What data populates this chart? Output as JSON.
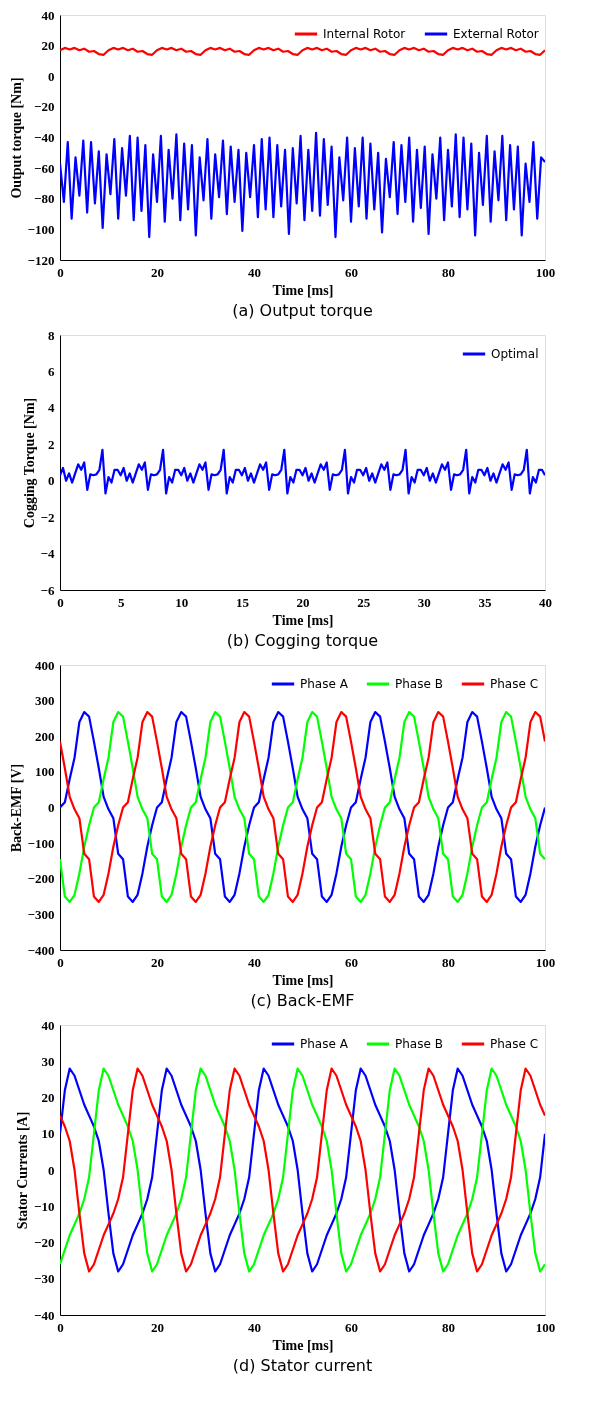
{
  "chart_data": [
    {
      "type": "line",
      "title": "(a) Output torque",
      "xlabel": "Time [ms]",
      "ylabel": "Output torque [Nm]",
      "xlim": [
        0,
        100
      ],
      "xticks": [
        0,
        20,
        40,
        60,
        80,
        100
      ],
      "ylim": [
        -120,
        40
      ],
      "yticks": [
        -120,
        -100,
        -80,
        -60,
        -40,
        -20,
        0,
        20,
        40
      ],
      "legend": "top right",
      "x": [
        0,
        1,
        2,
        3,
        4,
        5,
        6,
        7,
        8,
        9,
        10,
        11,
        12,
        13,
        14,
        15,
        16,
        17,
        18,
        19,
        20,
        21,
        22,
        23,
        24,
        25,
        26,
        27,
        28,
        29,
        30,
        31,
        32,
        33,
        34,
        35,
        36,
        37,
        38,
        39,
        40,
        41,
        42,
        43,
        44,
        45,
        46,
        47,
        48,
        49,
        50,
        51,
        52,
        53,
        54,
        55,
        56,
        57,
        58,
        59,
        60,
        61,
        62,
        63,
        64,
        65,
        66,
        67,
        68,
        69,
        70,
        71,
        72,
        73,
        74,
        75,
        76,
        77,
        78,
        79,
        80,
        81,
        82,
        83,
        84,
        85,
        86,
        87,
        88,
        89,
        90,
        91,
        92,
        93,
        94,
        95,
        96,
        97,
        98,
        99,
        100
      ],
      "series": [
        {
          "name": "Internal Rotor",
          "color": "#ff0000",
          "values": [
            17,
            18.5,
            17.5,
            18.5,
            17,
            18,
            16,
            16.5,
            14.5,
            14,
            17,
            18.5,
            17.5,
            18.5,
            17,
            18,
            16,
            16.5,
            14.5,
            14,
            17,
            18.5,
            17.5,
            18.5,
            17,
            18,
            16,
            16.5,
            14.5,
            14,
            17,
            18.5,
            17.5,
            18.5,
            17,
            18,
            16,
            16.5,
            14.5,
            14,
            17,
            18.5,
            17.5,
            18.5,
            17,
            18,
            16,
            16.5,
            14.5,
            14,
            17,
            18.5,
            17.5,
            18.5,
            17,
            18,
            16,
            16.5,
            14.5,
            14,
            17,
            18.5,
            17.5,
            18.5,
            17,
            18,
            16,
            16.5,
            14.5,
            14,
            17,
            18.5,
            17.5,
            18.5,
            17,
            18,
            16,
            16.5,
            14.5,
            14,
            17,
            18.5,
            17.5,
            18.5,
            17,
            18,
            16,
            16.5,
            14.5,
            14,
            17,
            18.5,
            17.5,
            18.5,
            17,
            18,
            16,
            16.5,
            14.5,
            14,
            17
          ]
        },
        {
          "name": "External Rotor",
          "color": "#0000ff",
          "x": [
            0,
            0.8,
            1.6,
            2.4,
            3.2,
            4,
            4.8,
            5.6,
            6.4,
            7.2,
            8,
            8.8,
            9.6,
            10.4,
            11.2,
            12,
            12.8,
            13.6,
            14.4,
            15.2,
            16,
            16.8,
            17.6,
            18.4,
            19.2,
            20,
            20.8,
            21.6,
            22.4,
            23.2,
            24,
            24.8,
            25.6,
            26.4,
            27.2,
            28,
            28.8,
            29.6,
            30.4,
            31.2,
            32,
            32.8,
            33.6,
            34.4,
            35.2,
            36,
            36.8,
            37.6,
            38.4,
            39.2,
            40,
            40.8,
            41.6,
            42.4,
            43.2,
            44,
            44.8,
            45.6,
            46.4,
            47.2,
            48,
            48.8,
            49.6,
            50.4,
            51.2,
            52,
            52.8,
            53.6,
            54.4,
            55.2,
            56,
            56.8,
            57.6,
            58.4,
            59.2,
            60,
            60.8,
            61.6,
            62.4,
            63.2,
            64,
            64.8,
            65.6,
            66.4,
            67.2,
            68,
            68.8,
            69.6,
            70.4,
            71.2,
            72,
            72.8,
            73.6,
            74.4,
            75.2,
            76,
            76.8,
            77.6,
            78.4,
            79.2,
            80,
            80.8,
            81.6,
            82.4,
            83.2,
            84,
            84.8,
            85.6,
            86.4,
            87.2,
            88,
            88.8,
            89.6,
            90.4,
            91.2,
            92,
            92.8,
            93.6,
            94.4,
            95.2,
            96,
            96.8,
            97.6,
            98.4,
            99.2,
            100
          ],
          "values": [
            -57,
            -82,
            -43,
            -93,
            -53,
            -78,
            -42,
            -89,
            -43,
            -83,
            -49,
            -99,
            -51,
            -77,
            -41,
            -93,
            -47,
            -78,
            -39,
            -94,
            -40,
            -88,
            -45,
            -105,
            -51,
            -82,
            -39,
            -95,
            -48,
            -80,
            -38,
            -94,
            -44,
            -87,
            -45,
            -104,
            -53,
            -81,
            -41,
            -93,
            -51,
            -79,
            -42,
            -90,
            -46,
            -82,
            -48,
            -101,
            -50,
            -79,
            -45,
            -92,
            -41,
            -87,
            -40,
            -92,
            -45,
            -85,
            -48,
            -103,
            -47,
            -83,
            -39,
            -94,
            -48,
            -88,
            -37,
            -91,
            -41,
            -84,
            -46,
            -105,
            -53,
            -81,
            -40,
            -95,
            -47,
            -85,
            -40,
            -93,
            -44,
            -87,
            -50,
            -102,
            -54,
            -79,
            -43,
            -90,
            -45,
            -82,
            -40,
            -95,
            -48,
            -86,
            -46,
            -103,
            -51,
            -80,
            -40,
            -94,
            -48,
            -85,
            -38,
            -92,
            -40,
            -87,
            -44,
            -104,
            -50,
            -84,
            -39,
            -95,
            -49,
            -81,
            -39,
            -94,
            -45,
            -87,
            -46,
            -104,
            -57,
            -82,
            -43,
            -93,
            -53,
            -56
          ]
        }
      ]
    },
    {
      "type": "line",
      "title": "(b) Cogging torque",
      "xlabel": "Time [ms]",
      "ylabel": "Cogging Torque [Nm]",
      "xlim": [
        0,
        40
      ],
      "xticks": [
        0,
        5,
        10,
        15,
        20,
        25,
        30,
        35,
        40
      ],
      "ylim": [
        -6,
        8
      ],
      "yticks": [
        -6,
        -4,
        -2,
        0,
        2,
        4,
        6,
        8
      ],
      "legend": "top right",
      "x": [
        0,
        0.25,
        0.5,
        0.75,
        1,
        1.25,
        1.5,
        1.75,
        2,
        2.25,
        2.5,
        2.75,
        3,
        3.25,
        3.5,
        3.75,
        4,
        4.25,
        4.5,
        4.75,
        5,
        5.25,
        5.5,
        5.75,
        6,
        6.25,
        6.5,
        6.75,
        7,
        7.25,
        7.5,
        7.75,
        8,
        8.25,
        8.5,
        8.75,
        9,
        9.25,
        9.5,
        9.75,
        10,
        10.25,
        10.5,
        10.75,
        11,
        11.25,
        11.5,
        11.75,
        12,
        12.25,
        12.5,
        12.75,
        13,
        13.25,
        13.5,
        13.75,
        14,
        14.25,
        14.5,
        14.75,
        15,
        15.25,
        15.5,
        15.75,
        16,
        16.25,
        16.5,
        16.75,
        17,
        17.25,
        17.5,
        17.75,
        18,
        18.25,
        18.5,
        18.75,
        19,
        19.25,
        19.5,
        19.75,
        20,
        20.25,
        20.5,
        20.75,
        21,
        21.25,
        21.5,
        21.75,
        22,
        22.25,
        22.5,
        22.75,
        23,
        23.25,
        23.5,
        23.75,
        24,
        24.25,
        24.5,
        24.75,
        25,
        25.25,
        25.5,
        25.75,
        26,
        26.25,
        26.5,
        26.75,
        27,
        27.25,
        27.5,
        27.75,
        28,
        28.25,
        28.5,
        28.75,
        29,
        29.25,
        29.5,
        29.75,
        30,
        30.25,
        30.5,
        30.75,
        31,
        31.25,
        31.5,
        31.75,
        32,
        32.25,
        32.5,
        32.75,
        33,
        33.25,
        33.5,
        33.75,
        34,
        34.25,
        34.5,
        34.75,
        35,
        35.25,
        35.5,
        35.75,
        36,
        36.25,
        36.5,
        36.75,
        37,
        37.25,
        37.5,
        37.75,
        38,
        38.25,
        38.5,
        38.75,
        39,
        39.25,
        39.5,
        39.75,
        40
      ],
      "series": [
        {
          "name": "Optimal",
          "color": "#0000ff",
          "values": [
            0.3,
            0.7,
            0,
            0.4,
            -0.1,
            0.4,
            0.9,
            0.6,
            1.0,
            -0.5,
            0.35,
            0.3,
            0.35,
            0.6,
            1.7,
            -0.7,
            0.2,
            -0.1,
            0.6,
            0.6,
            0.3,
            0.7,
            0,
            0.4,
            -0.1,
            0.4,
            0.9,
            0.6,
            1.0,
            -0.5,
            0.35,
            0.3,
            0.35,
            0.6,
            1.7,
            -0.7,
            0.2,
            -0.1,
            0.6,
            0.6,
            0.3,
            0.7,
            0,
            0.4,
            -0.1,
            0.4,
            0.9,
            0.6,
            1.0,
            -0.5,
            0.35,
            0.3,
            0.35,
            0.6,
            1.7,
            -0.7,
            0.2,
            -0.1,
            0.6,
            0.6,
            0.3,
            0.7,
            0,
            0.4,
            -0.1,
            0.4,
            0.9,
            0.6,
            1.0,
            -0.5,
            0.35,
            0.3,
            0.35,
            0.6,
            1.7,
            -0.7,
            0.2,
            -0.1,
            0.6,
            0.6,
            0.3,
            0.7,
            0,
            0.4,
            -0.1,
            0.4,
            0.9,
            0.6,
            1.0,
            -0.5,
            0.35,
            0.3,
            0.35,
            0.6,
            1.7,
            -0.7,
            0.2,
            -0.1,
            0.6,
            0.6,
            0.3,
            0.7,
            0,
            0.4,
            -0.1,
            0.4,
            0.9,
            0.6,
            1.0,
            -0.5,
            0.35,
            0.3,
            0.35,
            0.6,
            1.7,
            -0.7,
            0.2,
            -0.1,
            0.6,
            0.6,
            0.3,
            0.7,
            0,
            0.4,
            -0.1,
            0.4,
            0.9,
            0.6,
            1.0,
            -0.5,
            0.35,
            0.3,
            0.35,
            0.6,
            1.7,
            -0.7,
            0.2,
            -0.1,
            0.6,
            0.6,
            0.3,
            0.7,
            0,
            0.4,
            -0.1,
            0.4,
            0.9,
            0.6,
            1.0,
            -0.5,
            0.35,
            0.3,
            0.35,
            0.6,
            1.7,
            -0.7,
            0.2,
            -0.1,
            0.6,
            0.6,
            0.3
          ]
        }
      ]
    },
    {
      "type": "line",
      "title": "(c) Back-EMF",
      "xlabel": "Time [ms]",
      "ylabel": "Back-EMF [V]",
      "xlim": [
        0,
        100
      ],
      "xticks": [
        0,
        20,
        40,
        60,
        80,
        100
      ],
      "ylim": [
        -400,
        400
      ],
      "yticks": [
        -400,
        -300,
        -200,
        -100,
        0,
        100,
        200,
        300,
        400
      ],
      "legend": "top right",
      "x": [
        0,
        1,
        2,
        3,
        4,
        5,
        6,
        7,
        8,
        9,
        10,
        11,
        12,
        13,
        14,
        15,
        16,
        17,
        18,
        19,
        20,
        21,
        22,
        23,
        24,
        25,
        26,
        27,
        28,
        29,
        30,
        31,
        32,
        33,
        34,
        35,
        36,
        37,
        38,
        39,
        40,
        41,
        42,
        43,
        44,
        45,
        46,
        47,
        48,
        49,
        50,
        51,
        52,
        53,
        54,
        55,
        56,
        57,
        58,
        59,
        60,
        61,
        62,
        63,
        64,
        65,
        66,
        67,
        68,
        69,
        70,
        71,
        72,
        73,
        74,
        75,
        76,
        77,
        78,
        79,
        80,
        81,
        82,
        83,
        84,
        85,
        86,
        87,
        88,
        89,
        90,
        91,
        92,
        93,
        94,
        95,
        96,
        97,
        98,
        99,
        100
      ],
      "series": [
        {
          "name": "Phase A",
          "color": "#0000ff",
          "values": [
            0,
            15,
            80,
            140,
            240,
            268,
            255,
            185,
            110,
            30,
            -5,
            -30,
            -130,
            -145,
            -250,
            -265,
            -245,
            -185,
            -110,
            -50,
            0,
            15,
            80,
            140,
            240,
            268,
            255,
            185,
            110,
            30,
            -5,
            -30,
            -130,
            -145,
            -250,
            -265,
            -245,
            -185,
            -110,
            -50,
            0,
            15,
            80,
            140,
            240,
            268,
            255,
            185,
            110,
            30,
            -5,
            -30,
            -130,
            -145,
            -250,
            -265,
            -245,
            -185,
            -110,
            -50,
            0,
            15,
            80,
            140,
            240,
            268,
            255,
            185,
            110,
            30,
            -5,
            -30,
            -130,
            -145,
            -250,
            -265,
            -245,
            -185,
            -110,
            -50,
            0,
            15,
            80,
            140,
            240,
            268,
            255,
            185,
            110,
            30,
            -5,
            -30,
            -130,
            -145,
            -250,
            -265,
            -245,
            -185,
            -110,
            -50,
            0
          ]
        },
        {
          "name": "Phase B",
          "color": "#00ff00",
          "values": [
            -145,
            -250,
            -265,
            -245,
            -185,
            -110,
            -50,
            0,
            15,
            80,
            140,
            240,
            268,
            255,
            185,
            110,
            30,
            -5,
            -30,
            -130,
            -145,
            -250,
            -265,
            -245,
            -185,
            -110,
            -50,
            0,
            15,
            80,
            140,
            240,
            268,
            255,
            185,
            110,
            30,
            -5,
            -30,
            -130,
            -145,
            -250,
            -265,
            -245,
            -185,
            -110,
            -50,
            0,
            15,
            80,
            140,
            240,
            268,
            255,
            185,
            110,
            30,
            -5,
            -30,
            -130,
            -145,
            -250,
            -265,
            -245,
            -185,
            -110,
            -50,
            0,
            15,
            80,
            140,
            240,
            268,
            255,
            185,
            110,
            30,
            -5,
            -30,
            -130,
            -145,
            -250,
            -265,
            -245,
            -185,
            -110,
            -50,
            0,
            15,
            80,
            140,
            240,
            268,
            255,
            185,
            110,
            30,
            -5,
            -30,
            -130,
            -145
          ]
        },
        {
          "name": "Phase C",
          "color": "#ff0000",
          "values": [
            185,
            110,
            30,
            -5,
            -30,
            -130,
            -145,
            -250,
            -265,
            -245,
            -185,
            -110,
            -50,
            0,
            15,
            80,
            140,
            240,
            268,
            255,
            185,
            110,
            30,
            -5,
            -30,
            -130,
            -145,
            -250,
            -265,
            -245,
            -185,
            -110,
            -50,
            0,
            15,
            80,
            140,
            240,
            268,
            255,
            185,
            110,
            30,
            -5,
            -30,
            -130,
            -145,
            -250,
            -265,
            -245,
            -185,
            -110,
            -50,
            0,
            15,
            80,
            140,
            240,
            268,
            255,
            185,
            110,
            30,
            -5,
            -30,
            -130,
            -145,
            -250,
            -265,
            -245,
            -185,
            -110,
            -50,
            0,
            15,
            80,
            140,
            240,
            268,
            255,
            185,
            110,
            30,
            -5,
            -30,
            -130,
            -145,
            -250,
            -265,
            -245,
            -185,
            -110,
            -50,
            0,
            15,
            80,
            140,
            240,
            268,
            255,
            185
          ]
        }
      ]
    },
    {
      "type": "line",
      "title": "(d) Stator current",
      "xlabel": "Time [ms]",
      "ylabel": "Stator Currents [A]",
      "xlim": [
        0,
        100
      ],
      "xticks": [
        0,
        20,
        40,
        60,
        80,
        100
      ],
      "ylim": [
        -40,
        40
      ],
      "yticks": [
        -40,
        -30,
        -20,
        -10,
        0,
        10,
        20,
        30,
        40
      ],
      "legend": "top right",
      "x": [
        0,
        1,
        2,
        3,
        4,
        5,
        6,
        7,
        8,
        9,
        10,
        11,
        12,
        13,
        14,
        15,
        16,
        17,
        18,
        19,
        20,
        21,
        22,
        23,
        24,
        25,
        26,
        27,
        28,
        29,
        30,
        31,
        32,
        33,
        34,
        35,
        36,
        37,
        38,
        39,
        40,
        41,
        42,
        43,
        44,
        45,
        46,
        47,
        48,
        49,
        50,
        51,
        52,
        53,
        54,
        55,
        56,
        57,
        58,
        59,
        60,
        61,
        62,
        63,
        64,
        65,
        66,
        67,
        68,
        69,
        70,
        71,
        72,
        73,
        74,
        75,
        76,
        77,
        78,
        79,
        80,
        81,
        82,
        83,
        84,
        85,
        86,
        87,
        88,
        89,
        90,
        91,
        92,
        93,
        94,
        95,
        96,
        97,
        98,
        99,
        100
      ],
      "series": [
        {
          "name": "Phase A",
          "color": "#0000ff",
          "values": [
            10,
            22,
            28,
            26,
            22,
            18,
            15,
            12,
            8,
            0,
            -12,
            -23,
            -28,
            -26,
            -22,
            -18,
            -15,
            -12,
            -8,
            -2,
            10,
            22,
            28,
            26,
            22,
            18,
            15,
            12,
            8,
            0,
            -12,
            -23,
            -28,
            -26,
            -22,
            -18,
            -15,
            -12,
            -8,
            -2,
            10,
            22,
            28,
            26,
            22,
            18,
            15,
            12,
            8,
            0,
            -12,
            -23,
            -28,
            -26,
            -22,
            -18,
            -15,
            -12,
            -8,
            -2,
            10,
            22,
            28,
            26,
            22,
            18,
            15,
            12,
            8,
            0,
            -12,
            -23,
            -28,
            -26,
            -22,
            -18,
            -15,
            -12,
            -8,
            -2,
            10,
            22,
            28,
            26,
            22,
            18,
            15,
            12,
            8,
            0,
            -12,
            -23,
            -28,
            -26,
            -22,
            -18,
            -15,
            -12,
            -8,
            -2,
            10
          ]
        },
        {
          "name": "Phase B",
          "color": "#00ff00",
          "values": [
            -26,
            -22,
            -18,
            -15,
            -12,
            -8,
            -2,
            10,
            22,
            28,
            26,
            22,
            18,
            15,
            12,
            8,
            0,
            -12,
            -23,
            -28,
            -26,
            -22,
            -18,
            -15,
            -12,
            -8,
            -2,
            10,
            22,
            28,
            26,
            22,
            18,
            15,
            12,
            8,
            0,
            -12,
            -23,
            -28,
            -26,
            -22,
            -18,
            -15,
            -12,
            -8,
            -2,
            10,
            22,
            28,
            26,
            22,
            18,
            15,
            12,
            8,
            0,
            -12,
            -23,
            -28,
            -26,
            -22,
            -18,
            -15,
            -12,
            -8,
            -2,
            10,
            22,
            28,
            26,
            22,
            18,
            15,
            12,
            8,
            0,
            -12,
            -23,
            -28,
            -26,
            -22,
            -18,
            -15,
            -12,
            -8,
            -2,
            10,
            22,
            28,
            26,
            22,
            18,
            15,
            12,
            8,
            0,
            -12,
            -23,
            -28,
            -26
          ]
        },
        {
          "name": "Phase C",
          "color": "#ff0000",
          "values": [
            15,
            12,
            8,
            0,
            -12,
            -23,
            -28,
            -26,
            -22,
            -18,
            -15,
            -12,
            -8,
            -2,
            10,
            22,
            28,
            26,
            22,
            18,
            15,
            12,
            8,
            0,
            -12,
            -23,
            -28,
            -26,
            -22,
            -18,
            -15,
            -12,
            -8,
            -2,
            10,
            22,
            28,
            26,
            22,
            18,
            15,
            12,
            8,
            0,
            -12,
            -23,
            -28,
            -26,
            -22,
            -18,
            -15,
            -12,
            -8,
            -2,
            10,
            22,
            28,
            26,
            22,
            18,
            15,
            12,
            8,
            0,
            -12,
            -23,
            -28,
            -26,
            -22,
            -18,
            -15,
            -12,
            -8,
            -2,
            10,
            22,
            28,
            26,
            22,
            18,
            15,
            12,
            8,
            0,
            -12,
            -23,
            -28,
            -26,
            -22,
            -18,
            -15,
            -12,
            -8,
            -2,
            10,
            22,
            28,
            26,
            22,
            18,
            15
          ]
        }
      ]
    }
  ]
}
